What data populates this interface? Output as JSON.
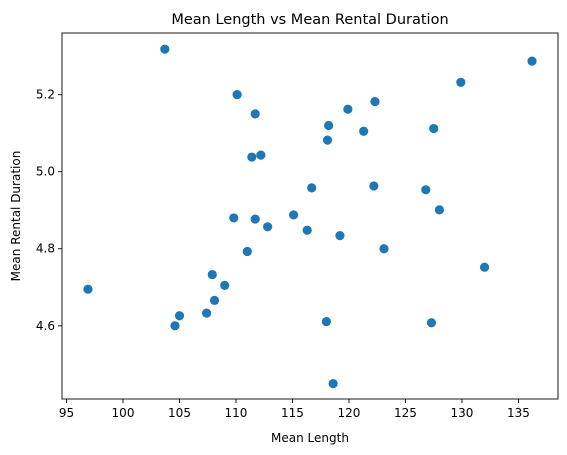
{
  "chart_data": {
    "type": "scatter",
    "title": "Mean Length vs Mean Rental Duration",
    "xlabel": "Mean Length",
    "ylabel": "Mean Rental Duration",
    "xlim": [
      94.6,
      138.5
    ],
    "ylim": [
      4.41,
      5.36
    ],
    "xticks": [
      95,
      100,
      105,
      110,
      115,
      120,
      125,
      130,
      135
    ],
    "yticks": [
      4.6,
      4.8,
      5.0,
      5.2
    ],
    "ytick_labels": [
      "4.6",
      "4.8",
      "5.0",
      "5.2"
    ],
    "marker_color": "#1f77b4",
    "grid": false,
    "points": [
      {
        "x": 96.9,
        "y": 4.695
      },
      {
        "x": 103.7,
        "y": 5.318
      },
      {
        "x": 104.6,
        "y": 4.6
      },
      {
        "x": 105.0,
        "y": 4.626
      },
      {
        "x": 107.4,
        "y": 4.633
      },
      {
        "x": 107.9,
        "y": 4.733
      },
      {
        "x": 108.1,
        "y": 4.666
      },
      {
        "x": 109.0,
        "y": 4.705
      },
      {
        "x": 109.8,
        "y": 4.88
      },
      {
        "x": 110.1,
        "y": 5.2
      },
      {
        "x": 111.0,
        "y": 4.793
      },
      {
        "x": 111.4,
        "y": 5.038
      },
      {
        "x": 111.7,
        "y": 5.15
      },
      {
        "x": 111.7,
        "y": 4.877
      },
      {
        "x": 112.2,
        "y": 5.043
      },
      {
        "x": 112.8,
        "y": 4.857
      },
      {
        "x": 115.1,
        "y": 4.888
      },
      {
        "x": 116.3,
        "y": 4.848
      },
      {
        "x": 116.7,
        "y": 4.958
      },
      {
        "x": 118.0,
        "y": 4.611
      },
      {
        "x": 118.1,
        "y": 5.082
      },
      {
        "x": 118.2,
        "y": 5.12
      },
      {
        "x": 118.6,
        "y": 4.45
      },
      {
        "x": 119.2,
        "y": 4.834
      },
      {
        "x": 119.9,
        "y": 5.162
      },
      {
        "x": 121.3,
        "y": 5.105
      },
      {
        "x": 122.2,
        "y": 4.963
      },
      {
        "x": 122.3,
        "y": 5.182
      },
      {
        "x": 123.1,
        "y": 4.8
      },
      {
        "x": 126.8,
        "y": 4.953
      },
      {
        "x": 127.3,
        "y": 4.608
      },
      {
        "x": 127.5,
        "y": 5.112
      },
      {
        "x": 128.0,
        "y": 4.901
      },
      {
        "x": 129.9,
        "y": 5.232
      },
      {
        "x": 132.0,
        "y": 4.752
      },
      {
        "x": 136.2,
        "y": 5.287
      }
    ]
  }
}
